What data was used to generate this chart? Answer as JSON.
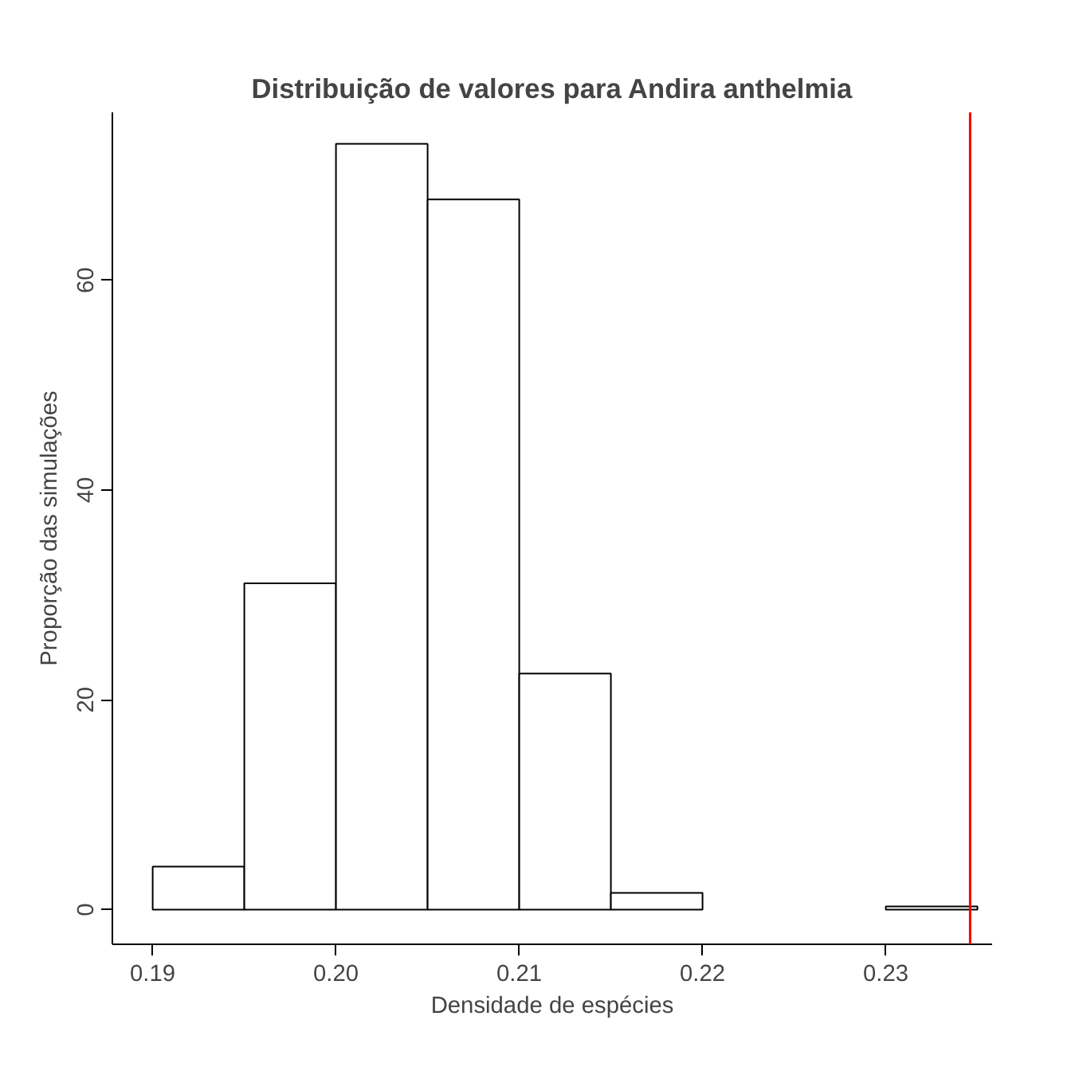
{
  "chart_data": {
    "type": "histogram",
    "title": "Distribuição de valores para Andira anthelmia",
    "xlabel": "Densidade de espécies",
    "ylabel": "Proporção das simulações",
    "bins": [
      0.19,
      0.195,
      0.2,
      0.205,
      0.21,
      0.215,
      0.22,
      0.225,
      0.23,
      0.235
    ],
    "values": [
      4.1,
      31.1,
      73.0,
      67.7,
      22.5,
      1.6,
      null,
      null,
      0.3
    ],
    "color": "#ffffff",
    "xlim": [
      0.1878,
      0.2358
    ],
    "ylim": [
      -3.3,
      76
    ],
    "xticks": [
      0.19,
      {
        "value": 0.2,
        "label": "0.20"
      },
      0.21,
      0.22,
      0.23
    ],
    "yticks": [
      0,
      20,
      40,
      60
    ],
    "ref_lines": [
      {
        "axis": "x",
        "value": 0.2346,
        "color": "#ff0000"
      }
    ],
    "grid": false
  }
}
